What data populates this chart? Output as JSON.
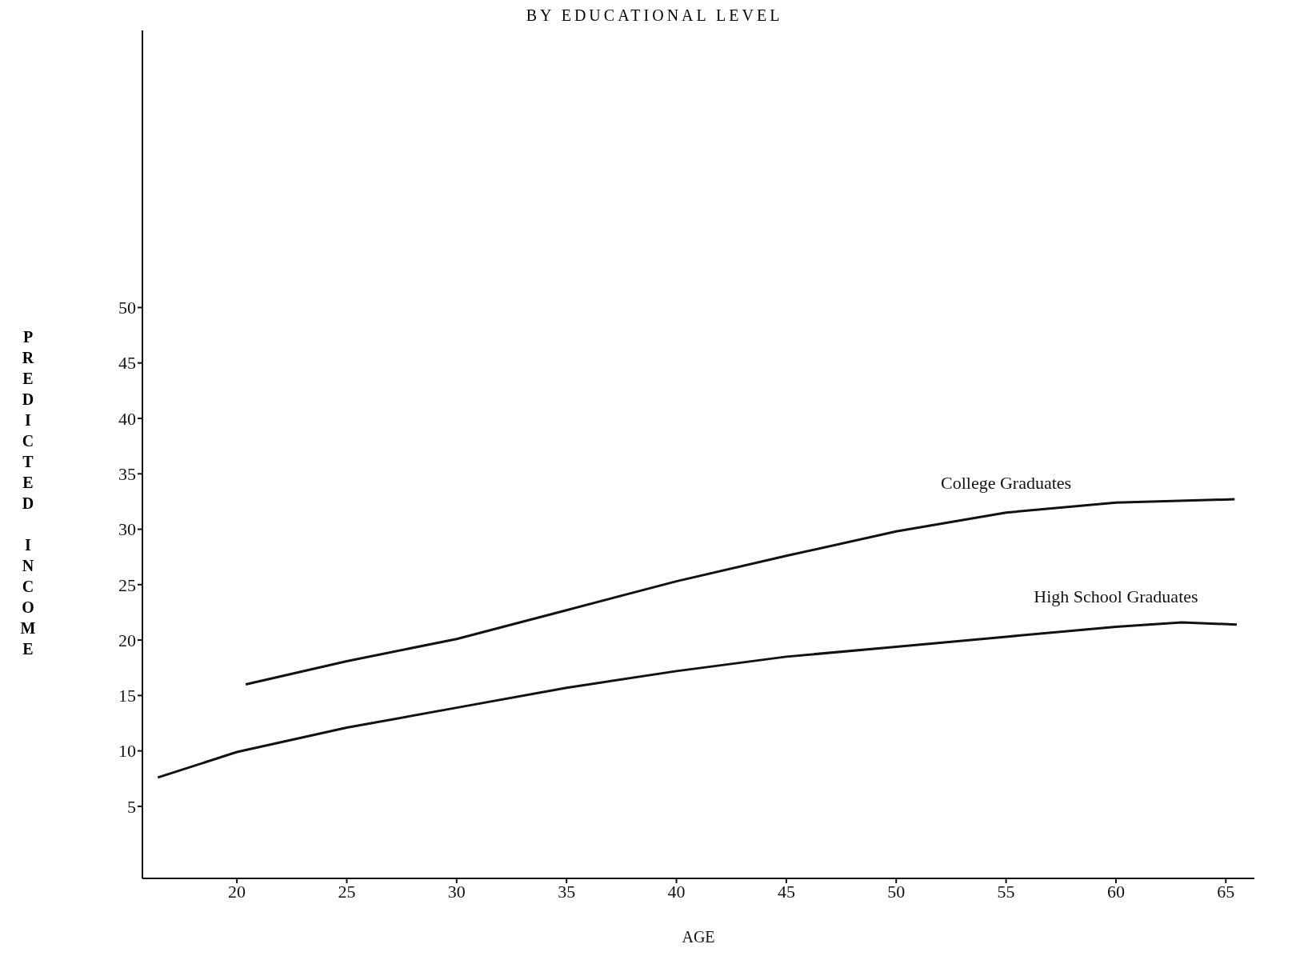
{
  "chart_data": {
    "type": "line",
    "title": "BY EDUCATIONAL LEVEL",
    "xlabel": "AGE",
    "ylabel": "PREDICTED INCOME",
    "xlim": [
      15.7,
      66.3
    ],
    "xticks": [
      20,
      25,
      30,
      35,
      40,
      45,
      50,
      55,
      60,
      65
    ],
    "ylim": [
      -1.5,
      75
    ],
    "yticks": [
      5,
      10,
      15,
      20,
      25,
      30,
      35,
      40,
      45,
      50
    ],
    "grid": false,
    "legend": false,
    "marker": "none",
    "line_style": "solid",
    "series": [
      {
        "name": "College Graduates",
        "color": "#111111",
        "x": [
          20.4,
          25,
          30,
          35,
          40,
          45,
          50,
          55,
          60,
          65.4
        ],
        "values": [
          16.0,
          18.1,
          20.1,
          22.7,
          25.3,
          27.6,
          29.8,
          31.5,
          32.4,
          32.7
        ]
      },
      {
        "name": "High School Graduates",
        "color": "#111111",
        "x": [
          16.4,
          20,
          25,
          30,
          35,
          40,
          45,
          50,
          55,
          60,
          63,
          65.5
        ],
        "values": [
          7.6,
          9.9,
          12.1,
          13.9,
          15.7,
          17.2,
          18.5,
          19.4,
          20.3,
          21.2,
          21.6,
          21.4
        ]
      }
    ]
  }
}
